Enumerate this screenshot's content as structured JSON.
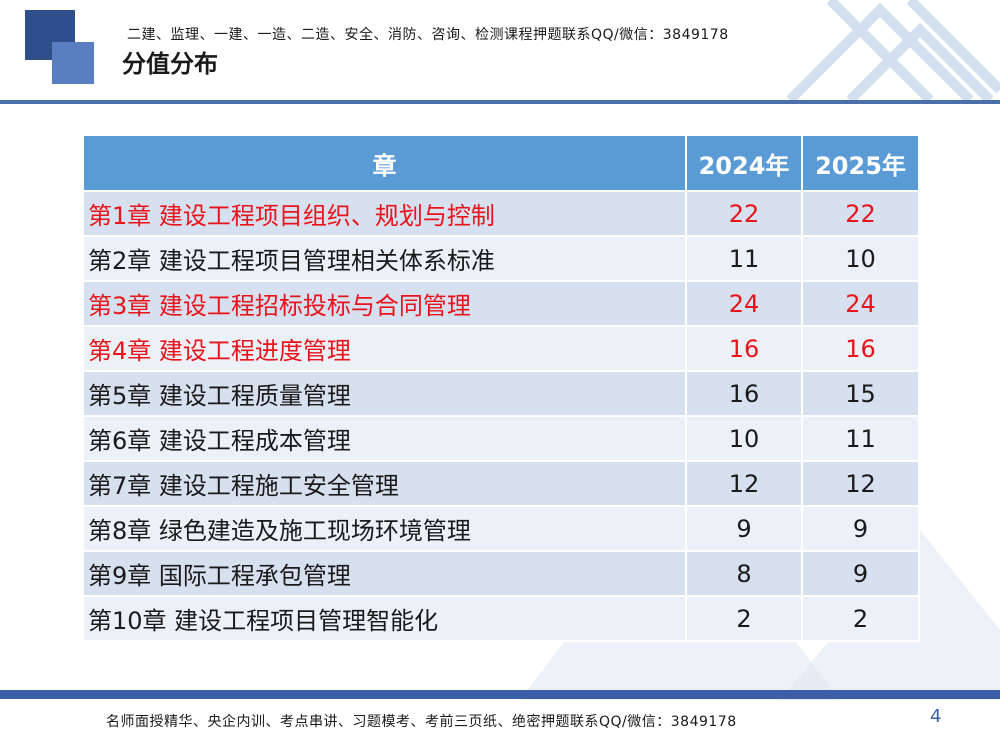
{
  "header": {
    "banner": "二建、监理、一建、一造、二造、安全、消防、咨询、检测课程押题联系QQ/微信：3849178",
    "title": "分值分布"
  },
  "table": {
    "headers": [
      "章",
      "2024年",
      "2025年"
    ],
    "rows": [
      {
        "chapter": "第1章  建设工程项目组织、规划与控制",
        "y2024": "22",
        "y2025": "22",
        "highlight": true
      },
      {
        "chapter": "第2章  建设工程项目管理相关体系标准",
        "y2024": "11",
        "y2025": "10",
        "highlight": false
      },
      {
        "chapter": "第3章  建设工程招标投标与合同管理",
        "y2024": "24",
        "y2025": "24",
        "highlight": true
      },
      {
        "chapter": "第4章  建设工程进度管理",
        "y2024": "16",
        "y2025": "16",
        "highlight": true
      },
      {
        "chapter": "第5章  建设工程质量管理",
        "y2024": "16",
        "y2025": "15",
        "highlight": false
      },
      {
        "chapter": "第6章  建设工程成本管理",
        "y2024": "10",
        "y2025": "11",
        "highlight": false
      },
      {
        "chapter": "第7章  建设工程施工安全管理",
        "y2024": "12",
        "y2025": "12",
        "highlight": false
      },
      {
        "chapter": "第8章  绿色建造及施工现场环境管理",
        "y2024": "9",
        "y2025": "9",
        "highlight": false
      },
      {
        "chapter": "第9章  国际工程承包管理",
        "y2024": "8",
        "y2025": "9",
        "highlight": false
      },
      {
        "chapter": "第10章 建设工程项目管理智能化",
        "y2024": "2",
        "y2025": "2",
        "highlight": false
      }
    ]
  },
  "footer": {
    "banner": "名师面授精华、央企内训、考点串讲、习题模考、考前三页纸、绝密押题联系QQ/微信：3849178",
    "page_number": "4"
  },
  "colors": {
    "header_fill": "#5b9bd5",
    "highlight_text": "#e8141b",
    "accent_line": "#3b5ea6"
  }
}
